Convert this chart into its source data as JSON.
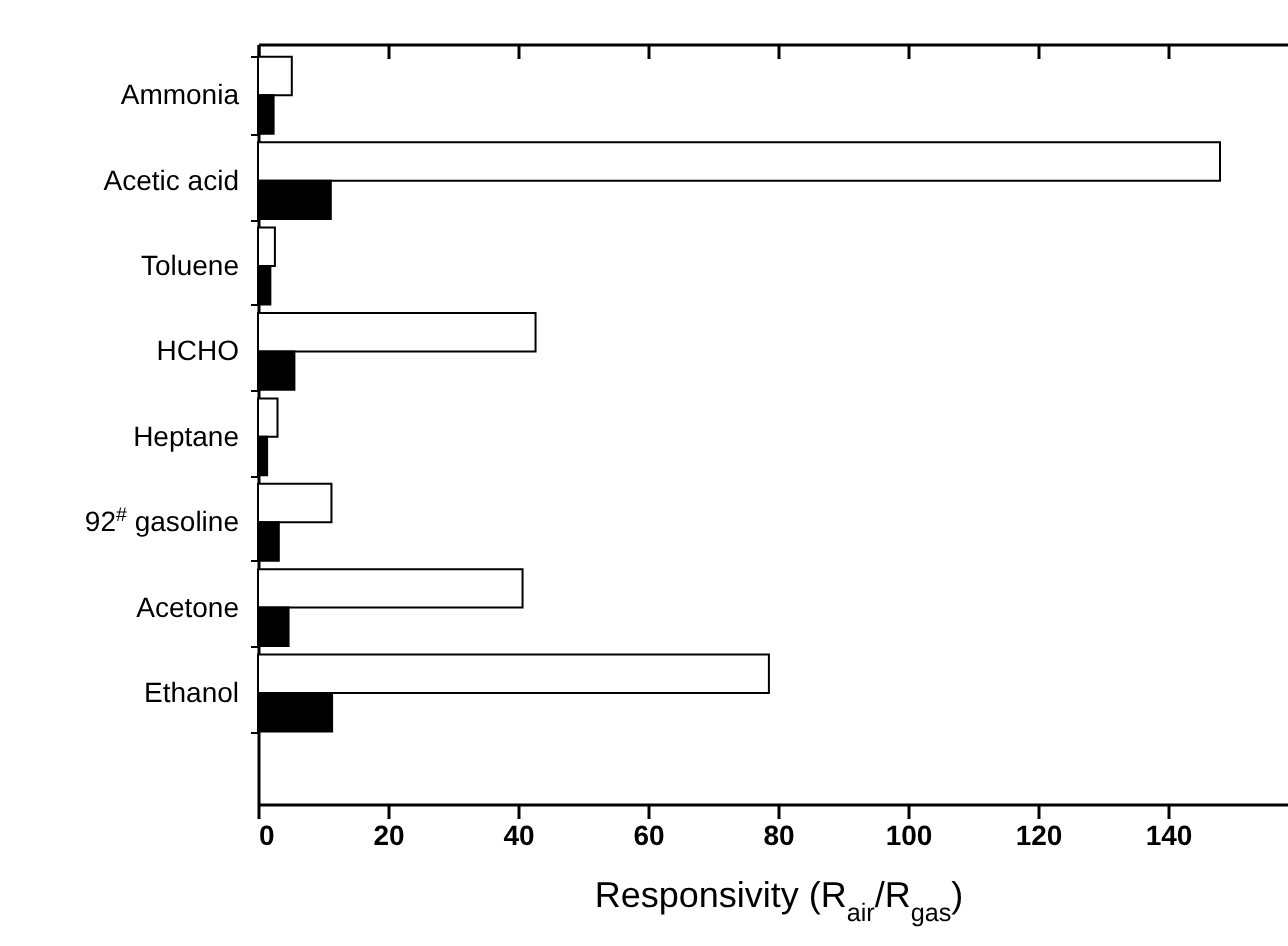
{
  "chart_data": {
    "type": "bar",
    "orientation": "horizontal",
    "categories": [
      "Ammonia",
      "Acetic acid",
      "Toluene",
      "HCHO",
      "Heptane",
      "92$^{#}$ gasoline",
      "Acetone",
      "Ethanol"
    ],
    "series": [
      {
        "color": "#ffffff",
        "values": [
          5.2,
          148,
          2.6,
          42.7,
          3.0,
          11.3,
          40.7,
          78.6
        ]
      },
      {
        "color": "#000000",
        "values": [
          2.4,
          11.2,
          1.9,
          5.6,
          1.4,
          3.2,
          4.7,
          11.4
        ]
      }
    ],
    "xlabel": "Responsivity (R$_{air}$/R$_{gas}$)",
    "xlim": [
      0,
      160
    ],
    "xticks": [
      0,
      20,
      40,
      60,
      80,
      100,
      120,
      140
    ],
    "grid": false
  }
}
